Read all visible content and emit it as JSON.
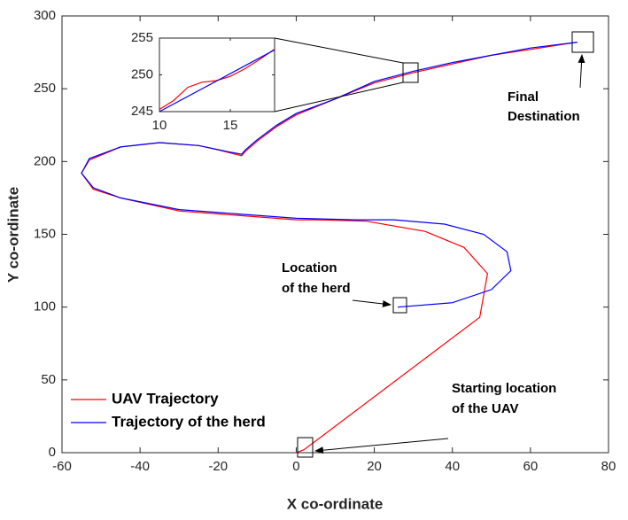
{
  "chart_data": [
    {
      "type": "line",
      "xlabel": "X co-ordinate",
      "ylabel": "Y co-ordinate",
      "xlim": [
        -60,
        80
      ],
      "ylim": [
        0,
        300
      ],
      "xticks": [
        -60,
        -40,
        -20,
        0,
        20,
        40,
        60,
        80
      ],
      "yticks": [
        0,
        50,
        100,
        150,
        200,
        250,
        300
      ],
      "legend": "lower left",
      "series": [
        {
          "name": "UAV Trajectory",
          "color": "#ff0000",
          "x": [
            0,
            2,
            47,
            49,
            43,
            33,
            18,
            5,
            0,
            -15,
            -30,
            -45,
            -52,
            -55,
            -53,
            -45,
            -35,
            -25,
            -20,
            -17,
            -14,
            -13,
            -10,
            -5,
            0,
            10,
            20,
            30,
            40,
            50,
            60,
            72
          ],
          "values": [
            0,
            2,
            93,
            123,
            141,
            152,
            159,
            160,
            160,
            163,
            166,
            175,
            181,
            192,
            201,
            210,
            213,
            211,
            208,
            206,
            204,
            207,
            214,
            224,
            232,
            243,
            254,
            261,
            267,
            273,
            277,
            282
          ]
        },
        {
          "name": "Trajectory of the herd",
          "color": "#0000ff",
          "x": [
            26,
            40,
            50,
            55,
            54,
            48,
            38,
            25,
            15,
            0,
            -15,
            -30,
            -45,
            -52,
            -55,
            -53,
            -45,
            -35,
            -25,
            -18,
            -14,
            -13,
            -10,
            -5,
            0,
            10,
            20,
            30,
            40,
            50,
            60,
            72
          ],
          "values": [
            100,
            103,
            112,
            125,
            138,
            150,
            157,
            160,
            160,
            161,
            164,
            167,
            175,
            182,
            192,
            202,
            210,
            213,
            211,
            207,
            205,
            208,
            215,
            225,
            233,
            243,
            255,
            262,
            268,
            273,
            278,
            282
          ]
        }
      ],
      "annotations": [
        {
          "lines": [
            "Final",
            "Destination"
          ]
        },
        {
          "lines": [
            "Location",
            "of the herd"
          ]
        },
        {
          "lines": [
            "Starting location",
            "of the UAV"
          ]
        }
      ]
    },
    {
      "type": "line",
      "xlim": [
        10,
        18.125
      ],
      "ylim": [
        245,
        255
      ],
      "xticks": [
        10,
        15
      ],
      "yticks": [
        245,
        250,
        255
      ],
      "series": [
        {
          "color": "#ff0000",
          "x": [
            10,
            11,
            12,
            13,
            14,
            15,
            16,
            17,
            18.125
          ],
          "values": [
            245.3,
            246.5,
            248.3,
            249,
            249.2,
            249.8,
            250.8,
            252,
            253.5
          ]
        },
        {
          "color": "#0000ff",
          "x": [
            10,
            18.125
          ],
          "values": [
            245,
            253.4
          ]
        }
      ]
    }
  ]
}
